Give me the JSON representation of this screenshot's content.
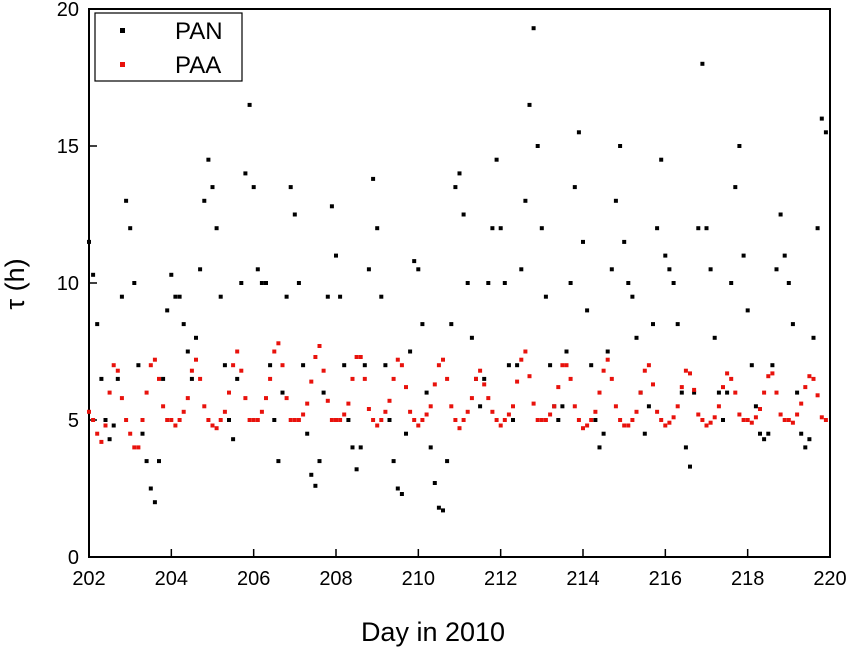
{
  "chart_data": {
    "type": "scatter",
    "title": "",
    "xlabel": "Day in 2010",
    "ylabel": "τ (h)",
    "xlim": [
      202,
      220
    ],
    "ylim": [
      0,
      20
    ],
    "x_ticks": [
      "202",
      "204",
      "206",
      "208",
      "210",
      "212",
      "214",
      "216",
      "218",
      "220"
    ],
    "y_ticks": [
      "0",
      "5",
      "10",
      "15",
      "20"
    ],
    "grid": false,
    "legend_position": "top-left",
    "series": [
      {
        "name": "PAN",
        "color": "#000000",
        "marker": "square",
        "x": [
          202.0,
          202.1,
          202.2,
          202.3,
          202.4,
          202.5,
          202.6,
          202.7,
          202.8,
          202.9,
          203.0,
          203.1,
          203.2,
          203.3,
          203.4,
          203.5,
          203.6,
          203.7,
          203.8,
          203.9,
          204.0,
          204.1,
          204.2,
          204.3,
          204.4,
          204.5,
          204.6,
          204.7,
          204.8,
          204.9,
          205.0,
          205.1,
          205.2,
          205.3,
          205.4,
          205.5,
          205.6,
          205.7,
          205.8,
          205.9,
          206.0,
          206.1,
          206.2,
          206.3,
          206.4,
          206.5,
          206.6,
          206.7,
          206.8,
          206.9,
          207.0,
          207.1,
          207.2,
          207.3,
          207.4,
          207.5,
          207.6,
          207.7,
          207.8,
          207.9,
          208.0,
          208.1,
          208.2,
          208.3,
          208.4,
          208.5,
          208.6,
          208.7,
          208.8,
          208.9,
          209.0,
          209.1,
          209.2,
          209.3,
          209.4,
          209.5,
          209.6,
          209.7,
          209.8,
          209.9,
          210.0,
          210.1,
          210.2,
          210.3,
          210.4,
          210.5,
          210.6,
          210.7,
          210.8,
          210.9,
          211.0,
          211.1,
          211.2,
          211.3,
          211.4,
          211.5,
          211.6,
          211.7,
          211.8,
          211.9,
          212.0,
          212.1,
          212.2,
          212.3,
          212.4,
          212.5,
          212.6,
          212.7,
          212.8,
          212.9,
          213.0,
          213.1,
          213.2,
          213.3,
          213.4,
          213.5,
          213.6,
          213.7,
          213.8,
          213.9,
          214.0,
          214.1,
          214.2,
          214.3,
          214.4,
          214.5,
          214.6,
          214.7,
          214.8,
          214.9,
          215.0,
          215.1,
          215.2,
          215.3,
          215.4,
          215.5,
          215.6,
          215.7,
          215.8,
          215.9,
          216.0,
          216.1,
          216.2,
          216.3,
          216.4,
          216.5,
          216.6,
          216.7,
          216.8,
          216.9,
          217.0,
          217.1,
          217.2,
          217.3,
          217.4,
          217.5,
          217.6,
          217.7,
          217.8,
          217.9,
          218.0,
          218.1,
          218.2,
          218.3,
          218.4,
          218.5,
          218.6,
          218.7,
          218.8,
          218.9,
          219.0,
          219.1,
          219.2,
          219.3,
          219.4,
          219.5,
          219.6,
          219.7,
          219.8,
          219.9
        ],
        "y": [
          11.5,
          10.3,
          8.5,
          6.5,
          5.0,
          4.3,
          4.8,
          6.5,
          9.5,
          13.0,
          12.0,
          10.0,
          7.0,
          4.5,
          3.5,
          2.5,
          2.0,
          3.5,
          6.5,
          9.0,
          10.3,
          9.5,
          9.5,
          8.5,
          7.5,
          6.5,
          8.0,
          10.5,
          13.0,
          14.5,
          13.5,
          12.0,
          9.5,
          7.0,
          5.0,
          4.3,
          6.5,
          10.0,
          14.0,
          16.5,
          13.5,
          10.5,
          10.0,
          10.0,
          7.0,
          5.0,
          3.5,
          6.0,
          9.5,
          13.5,
          12.5,
          10.0,
          7.0,
          4.5,
          3.0,
          2.6,
          3.5,
          6.0,
          9.5,
          12.8,
          11.0,
          9.5,
          7.0,
          5.0,
          4.0,
          3.2,
          4.0,
          7.0,
          10.5,
          13.8,
          12.0,
          9.5,
          7.0,
          5.0,
          3.5,
          2.5,
          2.3,
          4.5,
          7.5,
          10.8,
          10.5,
          8.5,
          6.0,
          4.0,
          2.7,
          1.8,
          1.7,
          3.5,
          8.5,
          13.5,
          14.0,
          12.5,
          10.0,
          8.0,
          6.5,
          5.5,
          6.5,
          10.0,
          12.0,
          14.5,
          12.0,
          10.0,
          7.0,
          5.0,
          7.0,
          10.5,
          13.0,
          16.5,
          19.3,
          15.0,
          12.0,
          9.5,
          7.0,
          5.5,
          5.0,
          5.5,
          7.5,
          10.0,
          13.5,
          15.5,
          11.5,
          9.0,
          7.0,
          5.0,
          4.0,
          4.5,
          7.5,
          10.5,
          13.0,
          15.0,
          11.5,
          10.0,
          9.5,
          8.0,
          6.0,
          4.5,
          5.5,
          8.5,
          12.0,
          14.5,
          11.0,
          10.5,
          10.0,
          8.5,
          6.0,
          4.0,
          3.3,
          6.0,
          12.0,
          18.0,
          12.0,
          10.5,
          8.0,
          6.0,
          5.0,
          6.0,
          10.0,
          13.5,
          15.0,
          11.0,
          9.0,
          7.0,
          5.5,
          4.5,
          4.3,
          4.5,
          7.0,
          10.5,
          12.5,
          11.0,
          10.0,
          8.5,
          6.0,
          4.5,
          4.0,
          4.3,
          8.0,
          12.0,
          16.0,
          15.5
        ]
      },
      {
        "name": "PAA",
        "color": "#e8120c",
        "marker": "square",
        "x": [
          202.0,
          202.1,
          202.2,
          202.3,
          202.4,
          202.5,
          202.6,
          202.7,
          202.8,
          202.9,
          203.0,
          203.1,
          203.2,
          203.3,
          203.4,
          203.5,
          203.6,
          203.7,
          203.8,
          203.9,
          204.0,
          204.1,
          204.2,
          204.3,
          204.4,
          204.5,
          204.6,
          204.7,
          204.8,
          204.9,
          205.0,
          205.1,
          205.2,
          205.3,
          205.4,
          205.5,
          205.6,
          205.7,
          205.8,
          205.9,
          206.0,
          206.1,
          206.2,
          206.3,
          206.4,
          206.5,
          206.6,
          206.7,
          206.8,
          206.9,
          207.0,
          207.1,
          207.2,
          207.3,
          207.4,
          207.5,
          207.6,
          207.7,
          207.8,
          207.9,
          208.0,
          208.1,
          208.2,
          208.3,
          208.4,
          208.5,
          208.6,
          208.7,
          208.8,
          208.9,
          209.0,
          209.1,
          209.2,
          209.3,
          209.4,
          209.5,
          209.6,
          209.7,
          209.8,
          209.9,
          210.0,
          210.1,
          210.2,
          210.3,
          210.4,
          210.5,
          210.6,
          210.7,
          210.8,
          210.9,
          211.0,
          211.1,
          211.2,
          211.3,
          211.4,
          211.5,
          211.6,
          211.7,
          211.8,
          211.9,
          212.0,
          212.1,
          212.2,
          212.3,
          212.4,
          212.5,
          212.6,
          212.7,
          212.8,
          212.9,
          213.0,
          213.1,
          213.2,
          213.3,
          213.4,
          213.5,
          213.6,
          213.7,
          213.8,
          213.9,
          214.0,
          214.1,
          214.2,
          214.3,
          214.4,
          214.5,
          214.6,
          214.7,
          214.8,
          214.9,
          215.0,
          215.1,
          215.2,
          215.3,
          215.4,
          215.5,
          215.6,
          215.7,
          215.8,
          215.9,
          216.0,
          216.1,
          216.2,
          216.3,
          216.4,
          216.5,
          216.6,
          216.7,
          216.8,
          216.9,
          217.0,
          217.1,
          217.2,
          217.3,
          217.4,
          217.5,
          217.6,
          217.7,
          217.8,
          217.9,
          218.0,
          218.1,
          218.2,
          218.3,
          218.4,
          218.5,
          218.6,
          218.7,
          218.8,
          218.9,
          219.0,
          219.1,
          219.2,
          219.3,
          219.4,
          219.5,
          219.6,
          219.7,
          219.8,
          219.9
        ],
        "y": [
          5.3,
          5.0,
          4.5,
          4.2,
          4.8,
          6.0,
          7.0,
          6.8,
          5.8,
          5.0,
          4.5,
          4.0,
          4.0,
          5.0,
          6.0,
          7.0,
          7.2,
          6.5,
          5.5,
          5.0,
          5.0,
          4.8,
          5.0,
          5.3,
          5.8,
          6.8,
          7.2,
          6.5,
          5.5,
          5.0,
          4.8,
          4.7,
          5.0,
          5.3,
          6.0,
          7.0,
          7.5,
          6.8,
          5.8,
          5.0,
          5.0,
          5.0,
          5.3,
          5.8,
          6.5,
          7.5,
          7.8,
          7.0,
          5.8,
          5.0,
          5.0,
          5.0,
          5.2,
          5.6,
          6.4,
          7.3,
          7.7,
          6.8,
          5.7,
          5.0,
          5.0,
          5.0,
          5.2,
          5.6,
          6.5,
          7.3,
          7.3,
          6.5,
          5.4,
          5.0,
          4.8,
          5.0,
          5.3,
          5.7,
          6.5,
          7.2,
          7.0,
          6.2,
          5.3,
          5.0,
          4.8,
          5.0,
          5.2,
          5.5,
          6.3,
          7.0,
          7.2,
          6.5,
          5.5,
          5.0,
          4.7,
          5.0,
          5.3,
          5.8,
          6.5,
          6.8,
          6.3,
          5.8,
          5.3,
          5.0,
          4.8,
          5.0,
          5.2,
          5.5,
          6.4,
          7.2,
          7.5,
          6.6,
          5.6,
          5.0,
          5.0,
          5.0,
          5.2,
          5.5,
          6.2,
          7.0,
          7.0,
          6.5,
          5.5,
          5.0,
          4.7,
          4.8,
          5.0,
          5.3,
          6.0,
          6.8,
          7.2,
          6.5,
          5.5,
          5.0,
          4.8,
          4.8,
          5.0,
          5.3,
          6.0,
          6.8,
          7.0,
          6.3,
          5.3,
          5.0,
          4.8,
          4.9,
          5.1,
          5.5,
          6.2,
          6.8,
          6.7,
          6.1,
          5.2,
          5.0,
          4.8,
          4.9,
          5.1,
          5.5,
          6.2,
          6.7,
          6.5,
          6.0,
          5.2,
          5.0,
          5.0,
          4.9,
          5.1,
          5.4,
          6.0,
          6.6,
          6.7,
          6.0,
          5.2,
          5.0,
          5.0,
          4.9,
          5.2,
          5.6,
          6.2,
          6.6,
          6.5,
          5.9,
          5.1,
          5.0
        ]
      }
    ]
  }
}
